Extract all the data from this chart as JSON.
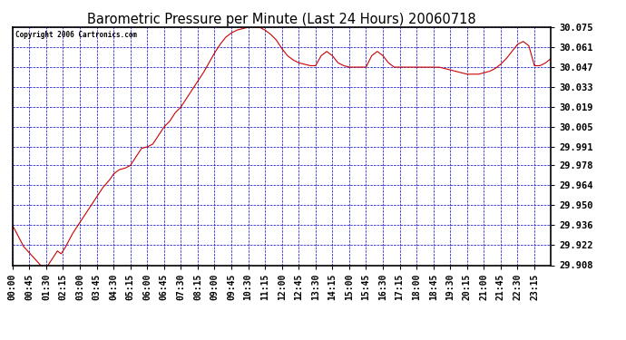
{
  "title": "Barometric Pressure per Minute (Last 24 Hours) 20060718",
  "copyright": "Copyright 2006 Cartronics.com",
  "bg_color": "#ffffff",
  "plot_bg_color": "#ffffff",
  "line_color": "#cc0000",
  "grid_color": "#0000cc",
  "ylim": [
    29.908,
    30.075
  ],
  "yticks": [
    29.908,
    29.922,
    29.936,
    29.95,
    29.964,
    29.978,
    29.991,
    30.005,
    30.019,
    30.033,
    30.047,
    30.061,
    30.075
  ],
  "xtick_labels": [
    "00:00",
    "00:45",
    "01:30",
    "02:15",
    "03:00",
    "03:45",
    "04:30",
    "05:15",
    "06:00",
    "06:45",
    "07:30",
    "08:15",
    "09:00",
    "09:45",
    "10:30",
    "11:15",
    "12:00",
    "12:45",
    "13:30",
    "14:15",
    "15:00",
    "15:45",
    "16:30",
    "17:15",
    "18:00",
    "18:45",
    "19:30",
    "20:15",
    "21:00",
    "21:45",
    "22:30",
    "23:15"
  ],
  "figsize": [
    6.9,
    3.75
  ],
  "dpi": 100
}
